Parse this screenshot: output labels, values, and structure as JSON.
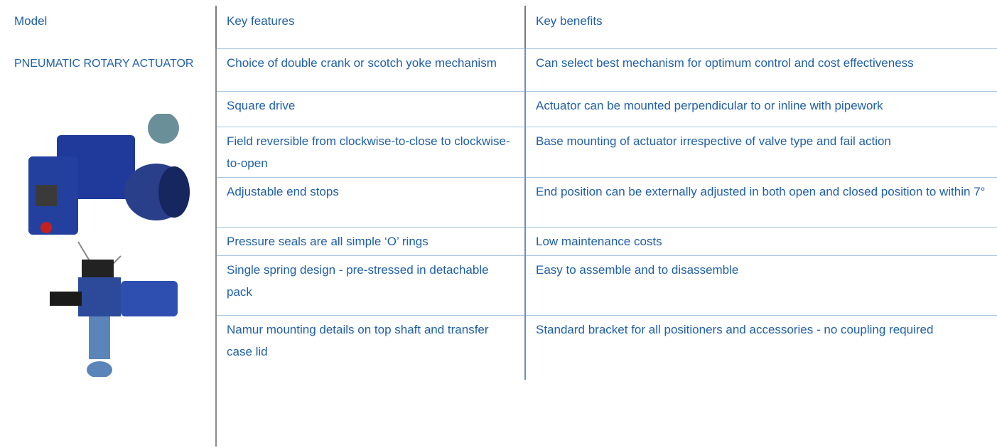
{
  "table": {
    "header": [
      "Model",
      "Key features",
      "Key benefits"
    ],
    "model": "PNEUMATIC ROTARY ACTUATOR",
    "rows": [
      [
        "Choice of double crank or scotch yoke mechanism",
        "Can select best mechanism for optimum control and cost effectiveness"
      ],
      [
        "Square drive",
        "Actuator can be mounted perpendicular to or inline with pipework"
      ],
      [
        "Field reversible from clockwise-to-close to clockwise-to-open",
        "Base mounting of actuator irrespective of valve type and fail action"
      ],
      [
        "Adjustable end stops",
        "End position can be externally adjusted in both open and closed position to within 7°"
      ],
      [
        "Pressure seals are all simple ‘O’ rings",
        "Low maintenance costs"
      ],
      [
        "Single spring design - pre-stressed in detachable pack",
        "Easy to assemble and to disassemble"
      ],
      [
        "Namur mounting details on top shaft and transfer case lid",
        "Standard bracket for all positioners and accessories - no coupling required"
      ]
    ]
  }
}
